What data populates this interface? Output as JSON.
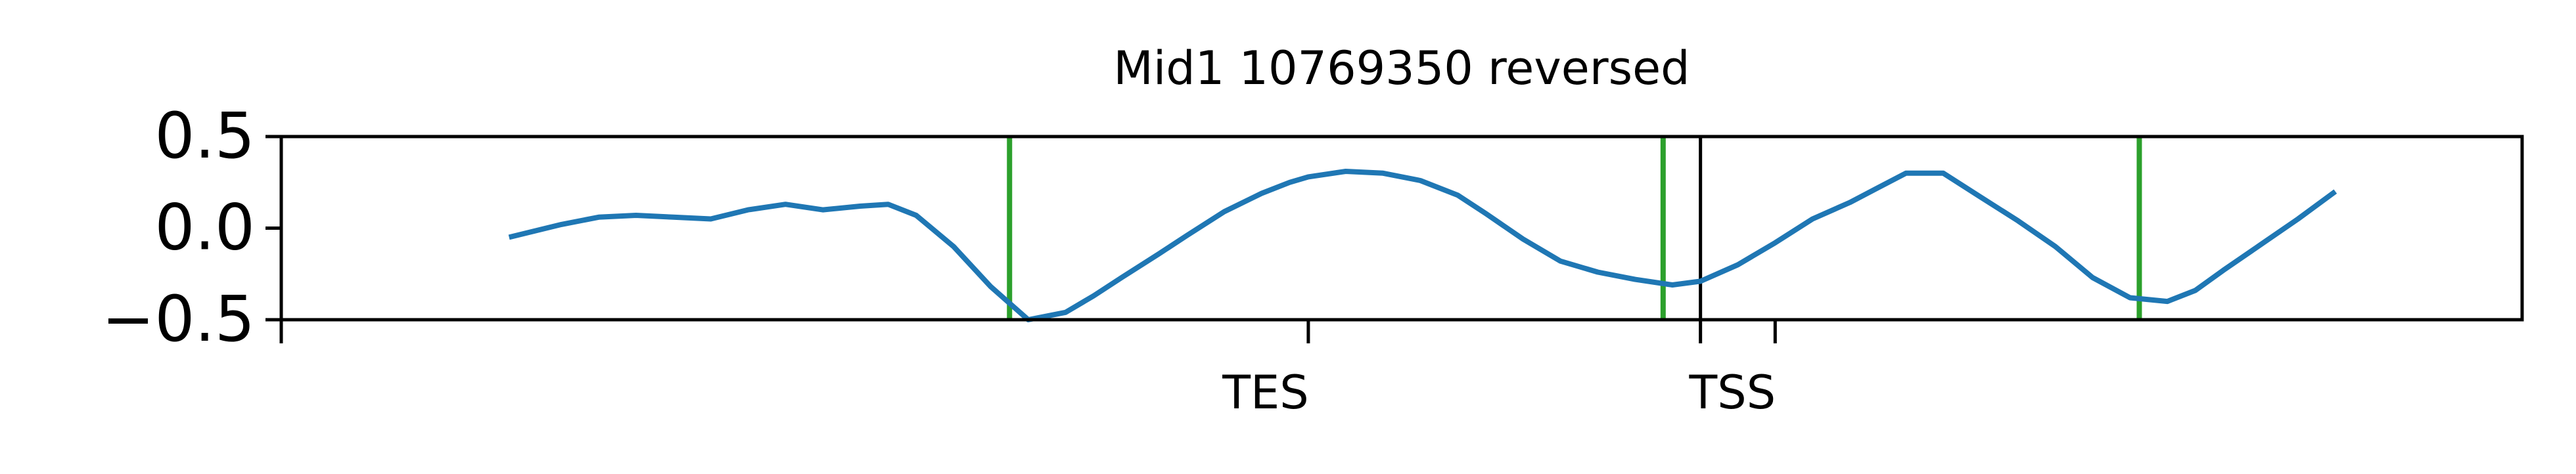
{
  "chart_data": {
    "type": "line",
    "title": "Mid1 10769350 reversed",
    "xlabel": "",
    "ylabel": "",
    "xlim": [
      -150,
      1050
    ],
    "ylim": [
      -0.5,
      0.5
    ],
    "y_ticks": [
      {
        "value": 0.5,
        "label": "0.5"
      },
      {
        "value": 0.0,
        "label": "0.0"
      },
      {
        "value": -0.5,
        "label": "−0.5"
      }
    ],
    "x_ticks": [
      {
        "value": -150,
        "label": ""
      },
      {
        "value": 400,
        "label": ""
      },
      {
        "value": 610,
        "label": ""
      },
      {
        "value": 650,
        "label": ""
      }
    ],
    "annotations": [
      {
        "text": "TES",
        "x": 400
      },
      {
        "text": "TSS",
        "x": 650
      }
    ],
    "series": [
      {
        "color": "#1f77b4",
        "x": [
          -28,
          0,
          20,
          40,
          60,
          80,
          100,
          120,
          140,
          160,
          175,
          190,
          210,
          230,
          250,
          270,
          285,
          300,
          320,
          335,
          355,
          375,
          390,
          400,
          420,
          440,
          460,
          480,
          495,
          515,
          535,
          555,
          575,
          595,
          610,
          630,
          650,
          670,
          690,
          705,
          720,
          740,
          760,
          780,
          800,
          820,
          840,
          860,
          875,
          890,
          910,
          930,
          950
        ],
        "y": [
          -0.05,
          0.02,
          0.06,
          0.07,
          0.06,
          0.05,
          0.1,
          0.13,
          0.1,
          0.12,
          0.13,
          0.07,
          -0.1,
          -0.32,
          -0.5,
          -0.46,
          -0.37,
          -0.27,
          -0.14,
          -0.04,
          0.09,
          0.19,
          0.25,
          0.28,
          0.31,
          0.3,
          0.26,
          0.18,
          0.08,
          -0.06,
          -0.18,
          -0.24,
          -0.28,
          -0.31,
          -0.29,
          -0.2,
          -0.08,
          0.05,
          0.14,
          0.22,
          0.3,
          0.3,
          0.17,
          0.04,
          -0.1,
          -0.27,
          -0.38,
          -0.4,
          -0.34,
          -0.23,
          -0.09,
          0.05,
          0.2
        ]
      }
    ],
    "vertical_lines": [
      {
        "x": 240,
        "color": "#2ca02c"
      },
      {
        "x": 590,
        "color": "#2ca02c"
      },
      {
        "x": 610,
        "color": "#000000"
      },
      {
        "x": 845,
        "color": "#2ca02c"
      }
    ]
  }
}
